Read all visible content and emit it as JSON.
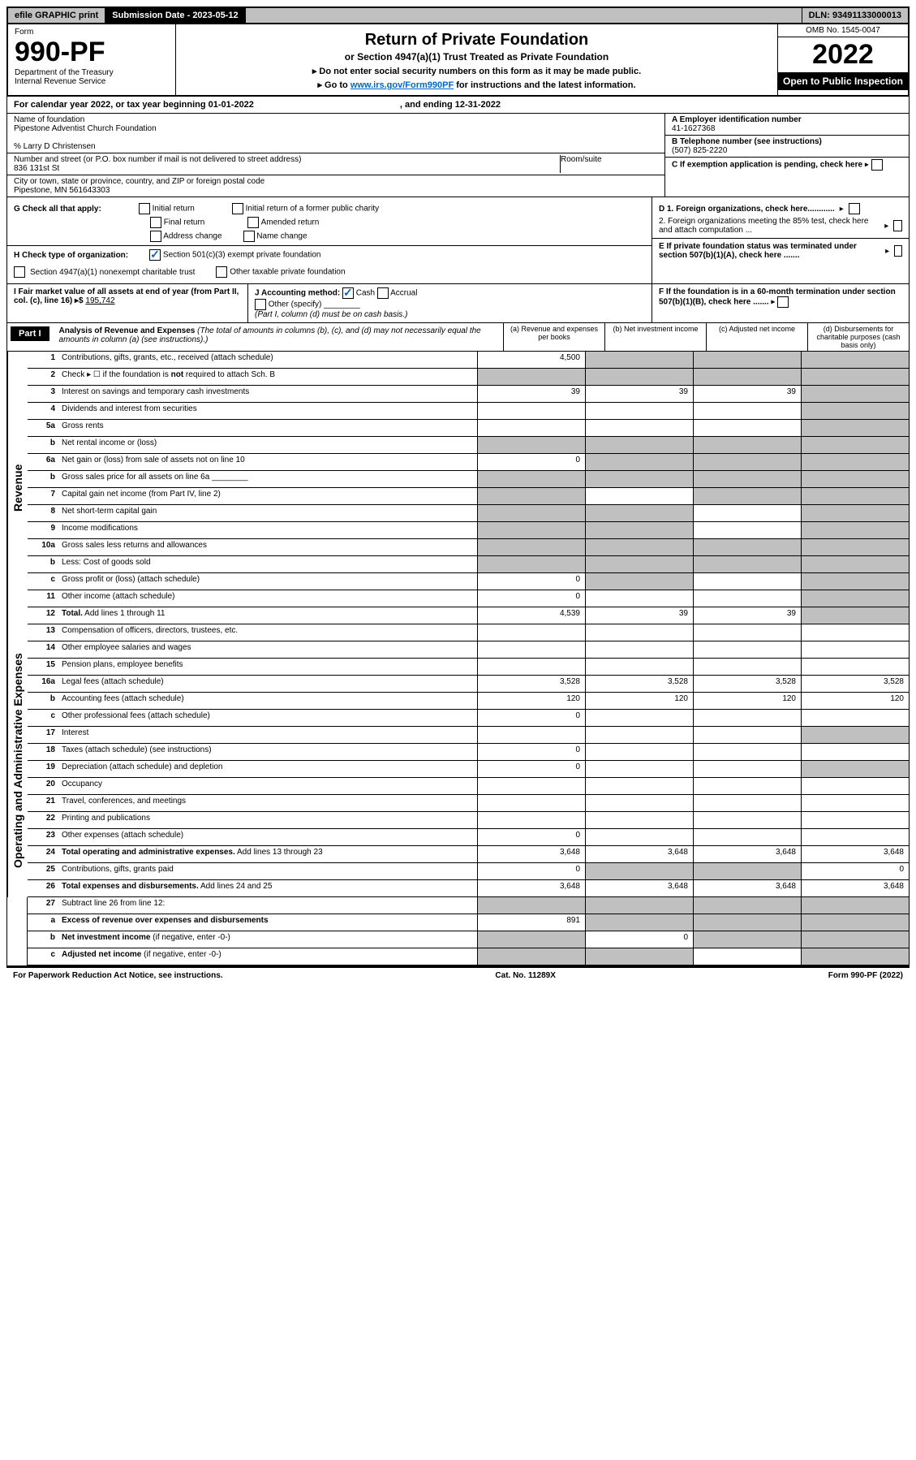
{
  "top": {
    "efile": "efile GRAPHIC print",
    "submission": "Submission Date - 2023-05-12",
    "dln": "DLN: 93491133000013"
  },
  "header": {
    "form_label": "Form",
    "form_num": "990-PF",
    "dept": "Department of the Treasury",
    "irs": "Internal Revenue Service",
    "title": "Return of Private Foundation",
    "subtitle": "or Section 4947(a)(1) Trust Treated as Private Foundation",
    "instr1": "▸ Do not enter social security numbers on this form as it may be made public.",
    "instr2_pre": "▸ Go to ",
    "instr2_link": "www.irs.gov/Form990PF",
    "instr2_post": " for instructions and the latest information.",
    "omb": "OMB No. 1545-0047",
    "year": "2022",
    "open": "Open to Public Inspection"
  },
  "cal": {
    "text": "For calendar year 2022, or tax year beginning 01-01-2022",
    "ending": ", and ending 12-31-2022"
  },
  "id": {
    "name_label": "Name of foundation",
    "name": "Pipestone Adventist Church Foundation",
    "care_of": "% Larry D Christensen",
    "street_label": "Number and street (or P.O. box number if mail is not delivered to street address)",
    "street": "836 131st St",
    "room_label": "Room/suite",
    "city_label": "City or town, state or province, country, and ZIP or foreign postal code",
    "city": "Pipestone, MN  561643303",
    "a_label": "A Employer identification number",
    "a_val": "41-1627368",
    "b_label": "B Telephone number (see instructions)",
    "b_val": "(507) 825-2220",
    "c_label": "C If exemption application is pending, check here"
  },
  "checks": {
    "g_label": "G Check all that apply:",
    "g_initial": "Initial return",
    "g_final": "Final return",
    "g_addr": "Address change",
    "g_initial_former": "Initial return of a former public charity",
    "g_amended": "Amended return",
    "g_name": "Name change",
    "h_label": "H Check type of organization:",
    "h_501c3": "Section 501(c)(3) exempt private foundation",
    "h_4947": "Section 4947(a)(1) nonexempt charitable trust",
    "h_other": "Other taxable private foundation",
    "d1": "D 1. Foreign organizations, check here............",
    "d2": "2. Foreign organizations meeting the 85% test, check here and attach computation ...",
    "e": "E If private foundation status was terminated under section 507(b)(1)(A), check here .......",
    "i_label": "I Fair market value of all assets at end of year (from Part II, col. (c), line 16) ▸$",
    "i_val": "195,742",
    "j_label": "J Accounting method:",
    "j_cash": "Cash",
    "j_accrual": "Accrual",
    "j_other": "Other (specify)",
    "j_note": "(Part I, column (d) must be on cash basis.)",
    "f": "F If the foundation is in a 60-month termination under section 507(b)(1)(B), check here ......."
  },
  "part1": {
    "label": "Part I",
    "title": "Analysis of Revenue and Expenses",
    "note": "(The total of amounts in columns (b), (c), and (d) may not necessarily equal the amounts in column (a) (see instructions).)",
    "col_a": "(a) Revenue and expenses per books",
    "col_b": "(b) Net investment income",
    "col_c": "(c) Adjusted net income",
    "col_d": "(d) Disbursements for charitable purposes (cash basis only)"
  },
  "sidebar": {
    "revenue": "Revenue",
    "expenses": "Operating and Administrative Expenses"
  },
  "rows": [
    {
      "ln": "1",
      "lbl": "Contributions, gifts, grants, etc., received (attach schedule)",
      "a": "4,500",
      "b": "",
      "c": "",
      "d": "",
      "grey": [
        "b",
        "c",
        "d"
      ]
    },
    {
      "ln": "2",
      "lbl": "Check ▸ ☐ if the foundation is <b>not</b> required to attach Sch. B",
      "a": "",
      "b": "",
      "c": "",
      "d": "",
      "grey": [
        "a",
        "b",
        "c",
        "d"
      ]
    },
    {
      "ln": "3",
      "lbl": "Interest on savings and temporary cash investments",
      "a": "39",
      "b": "39",
      "c": "39",
      "d": "",
      "grey": [
        "d"
      ]
    },
    {
      "ln": "4",
      "lbl": "Dividends and interest from securities",
      "a": "",
      "b": "",
      "c": "",
      "d": "",
      "grey": [
        "d"
      ]
    },
    {
      "ln": "5a",
      "lbl": "Gross rents",
      "a": "",
      "b": "",
      "c": "",
      "d": "",
      "grey": [
        "d"
      ]
    },
    {
      "ln": "b",
      "lbl": "Net rental income or (loss)",
      "a": "",
      "b": "",
      "c": "",
      "d": "",
      "grey": [
        "a",
        "b",
        "c",
        "d"
      ]
    },
    {
      "ln": "6a",
      "lbl": "Net gain or (loss) from sale of assets not on line 10",
      "a": "0",
      "b": "",
      "c": "",
      "d": "",
      "grey": [
        "b",
        "c",
        "d"
      ]
    },
    {
      "ln": "b",
      "lbl": "Gross sales price for all assets on line 6a ________",
      "a": "",
      "b": "",
      "c": "",
      "d": "",
      "grey": [
        "a",
        "b",
        "c",
        "d"
      ]
    },
    {
      "ln": "7",
      "lbl": "Capital gain net income (from Part IV, line 2)",
      "a": "",
      "b": "",
      "c": "",
      "d": "",
      "grey": [
        "a",
        "c",
        "d"
      ]
    },
    {
      "ln": "8",
      "lbl": "Net short-term capital gain",
      "a": "",
      "b": "",
      "c": "",
      "d": "",
      "grey": [
        "a",
        "b",
        "d"
      ]
    },
    {
      "ln": "9",
      "lbl": "Income modifications",
      "a": "",
      "b": "",
      "c": "",
      "d": "",
      "grey": [
        "a",
        "b",
        "d"
      ]
    },
    {
      "ln": "10a",
      "lbl": "Gross sales less returns and allowances",
      "a": "",
      "b": "",
      "c": "",
      "d": "",
      "grey": [
        "a",
        "b",
        "c",
        "d"
      ]
    },
    {
      "ln": "b",
      "lbl": "Less: Cost of goods sold",
      "a": "",
      "b": "",
      "c": "",
      "d": "",
      "grey": [
        "a",
        "b",
        "c",
        "d"
      ]
    },
    {
      "ln": "c",
      "lbl": "Gross profit or (loss) (attach schedule)",
      "a": "0",
      "b": "",
      "c": "",
      "d": "",
      "grey": [
        "b",
        "d"
      ]
    },
    {
      "ln": "11",
      "lbl": "Other income (attach schedule)",
      "a": "0",
      "b": "",
      "c": "",
      "d": "",
      "grey": [
        "d"
      ]
    },
    {
      "ln": "12",
      "lbl": "<b>Total.</b> Add lines 1 through 11",
      "a": "4,539",
      "b": "39",
      "c": "39",
      "d": "",
      "grey": [
        "d"
      ]
    }
  ],
  "exp_rows": [
    {
      "ln": "13",
      "lbl": "Compensation of officers, directors, trustees, etc.",
      "a": "",
      "b": "",
      "c": "",
      "d": ""
    },
    {
      "ln": "14",
      "lbl": "Other employee salaries and wages",
      "a": "",
      "b": "",
      "c": "",
      "d": ""
    },
    {
      "ln": "15",
      "lbl": "Pension plans, employee benefits",
      "a": "",
      "b": "",
      "c": "",
      "d": ""
    },
    {
      "ln": "16a",
      "lbl": "Legal fees (attach schedule)",
      "a": "3,528",
      "b": "3,528",
      "c": "3,528",
      "d": "3,528"
    },
    {
      "ln": "b",
      "lbl": "Accounting fees (attach schedule)",
      "a": "120",
      "b": "120",
      "c": "120",
      "d": "120"
    },
    {
      "ln": "c",
      "lbl": "Other professional fees (attach schedule)",
      "a": "0",
      "b": "",
      "c": "",
      "d": ""
    },
    {
      "ln": "17",
      "lbl": "Interest",
      "a": "",
      "b": "",
      "c": "",
      "d": "",
      "grey": [
        "d"
      ]
    },
    {
      "ln": "18",
      "lbl": "Taxes (attach schedule) (see instructions)",
      "a": "0",
      "b": "",
      "c": "",
      "d": ""
    },
    {
      "ln": "19",
      "lbl": "Depreciation (attach schedule) and depletion",
      "a": "0",
      "b": "",
      "c": "",
      "d": "",
      "grey": [
        "d"
      ]
    },
    {
      "ln": "20",
      "lbl": "Occupancy",
      "a": "",
      "b": "",
      "c": "",
      "d": ""
    },
    {
      "ln": "21",
      "lbl": "Travel, conferences, and meetings",
      "a": "",
      "b": "",
      "c": "",
      "d": ""
    },
    {
      "ln": "22",
      "lbl": "Printing and publications",
      "a": "",
      "b": "",
      "c": "",
      "d": ""
    },
    {
      "ln": "23",
      "lbl": "Other expenses (attach schedule)",
      "a": "0",
      "b": "",
      "c": "",
      "d": ""
    },
    {
      "ln": "24",
      "lbl": "<b>Total operating and administrative expenses.</b> Add lines 13 through 23",
      "a": "3,648",
      "b": "3,648",
      "c": "3,648",
      "d": "3,648"
    },
    {
      "ln": "25",
      "lbl": "Contributions, gifts, grants paid",
      "a": "0",
      "b": "",
      "c": "",
      "d": "0",
      "grey": [
        "b",
        "c"
      ]
    },
    {
      "ln": "26",
      "lbl": "<b>Total expenses and disbursements.</b> Add lines 24 and 25",
      "a": "3,648",
      "b": "3,648",
      "c": "3,648",
      "d": "3,648"
    }
  ],
  "net_rows": [
    {
      "ln": "27",
      "lbl": "Subtract line 26 from line 12:",
      "a": "",
      "b": "",
      "c": "",
      "d": "",
      "grey": [
        "a",
        "b",
        "c",
        "d"
      ]
    },
    {
      "ln": "a",
      "lbl": "<b>Excess of revenue over expenses and disbursements</b>",
      "a": "891",
      "b": "",
      "c": "",
      "d": "",
      "grey": [
        "b",
        "c",
        "d"
      ]
    },
    {
      "ln": "b",
      "lbl": "<b>Net investment income</b> (if negative, enter -0-)",
      "a": "",
      "b": "0",
      "c": "",
      "d": "",
      "grey": [
        "a",
        "c",
        "d"
      ]
    },
    {
      "ln": "c",
      "lbl": "<b>Adjusted net income</b> (if negative, enter -0-)",
      "a": "",
      "b": "",
      "c": "",
      "d": "",
      "grey": [
        "a",
        "b",
        "d"
      ]
    }
  ],
  "footer": {
    "left": "For Paperwork Reduction Act Notice, see instructions.",
    "mid": "Cat. No. 11289X",
    "right": "Form 990-PF (2022)"
  }
}
